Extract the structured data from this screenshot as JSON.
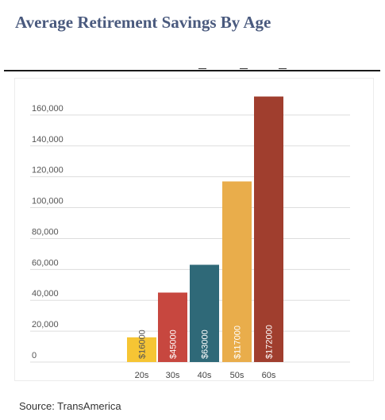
{
  "title": "Average Retirement Savings By Age",
  "source": "Source: TransAmerica",
  "colors": {
    "title": "#4a5a7e",
    "grid": "#dddddd",
    "bars": [
      "#f6c534",
      "#c7473f",
      "#2f6978",
      "#e9ad4b",
      "#a03e2e"
    ]
  },
  "chart_data": {
    "type": "bar",
    "categories": [
      "20s",
      "30s",
      "40s",
      "50s",
      "60s"
    ],
    "values": [
      16000,
      45000,
      63000,
      117000,
      172000
    ],
    "data_labels": [
      "$16000",
      "$45000",
      "$63000",
      "$117000",
      "$172000"
    ],
    "yticks": [
      "0",
      "20,000",
      "40,000",
      "60,000",
      "80,000",
      "100,000",
      "120,000",
      "140,000",
      "160,000"
    ],
    "ytick_values": [
      0,
      20000,
      40000,
      60000,
      80000,
      100000,
      120000,
      140000,
      160000
    ],
    "ylim": [
      0,
      180000
    ],
    "grid": true,
    "legend": "none"
  }
}
